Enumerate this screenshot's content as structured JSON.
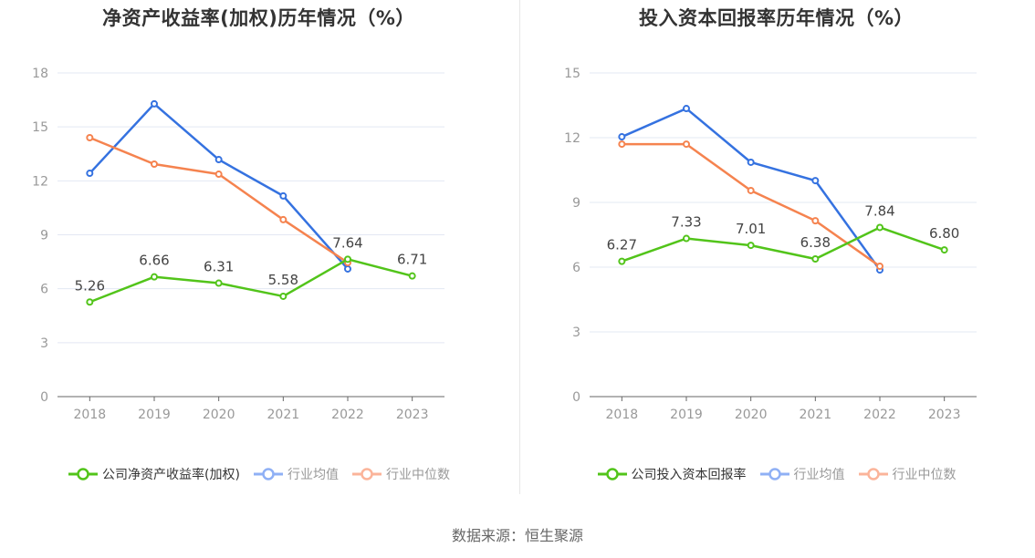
{
  "colors": {
    "company": "#52c41a",
    "average": "#3572e0",
    "median": "#f5834f",
    "average_legend": "#8fb0f5",
    "median_legend": "#fbb49a",
    "grid": "#e3e8f3",
    "axis": "#666666"
  },
  "source": "数据来源：恒生聚源",
  "chart_data": [
    {
      "type": "line",
      "title": "净资产收益率(加权)历年情况（%）",
      "categories": [
        "2018",
        "2019",
        "2020",
        "2021",
        "2022",
        "2023"
      ],
      "ylim": [
        0,
        18
      ],
      "yticks": [
        "0",
        "3",
        "6",
        "9",
        "12",
        "15",
        "18"
      ],
      "grid": true,
      "legend_position": "bottom",
      "series": [
        {
          "name": "公司净资产收益率(加权)",
          "key": "company",
          "values": [
            5.26,
            6.66,
            6.31,
            5.58,
            7.64,
            6.71
          ],
          "labels": [
            "5.26",
            "6.66",
            "6.31",
            "5.58",
            "7.64",
            "6.71"
          ]
        },
        {
          "name": "行业均值",
          "key": "average",
          "values": [
            12.42,
            16.28,
            13.18,
            11.16,
            7.1,
            null
          ]
        },
        {
          "name": "行业中位数",
          "key": "median",
          "values": [
            14.4,
            12.93,
            12.37,
            9.84,
            7.45,
            null
          ]
        }
      ]
    },
    {
      "type": "line",
      "title": "投入资本回报率历年情况（%）",
      "categories": [
        "2018",
        "2019",
        "2020",
        "2021",
        "2022",
        "2023"
      ],
      "ylim": [
        0,
        15
      ],
      "yticks": [
        "0",
        "3",
        "6",
        "9",
        "12",
        "15"
      ],
      "grid": true,
      "legend_position": "bottom",
      "series": [
        {
          "name": "公司投入资本回报率",
          "key": "company",
          "values": [
            6.27,
            7.33,
            7.01,
            6.38,
            7.84,
            6.8
          ],
          "labels": [
            "6.27",
            "7.33",
            "7.01",
            "6.38",
            "7.84",
            "6.80"
          ]
        },
        {
          "name": "行业均值",
          "key": "average",
          "values": [
            12.04,
            13.35,
            10.86,
            10.01,
            5.87,
            null
          ]
        },
        {
          "name": "行业中位数",
          "key": "median",
          "values": [
            11.7,
            11.7,
            9.55,
            8.15,
            6.04,
            null
          ]
        }
      ]
    }
  ]
}
